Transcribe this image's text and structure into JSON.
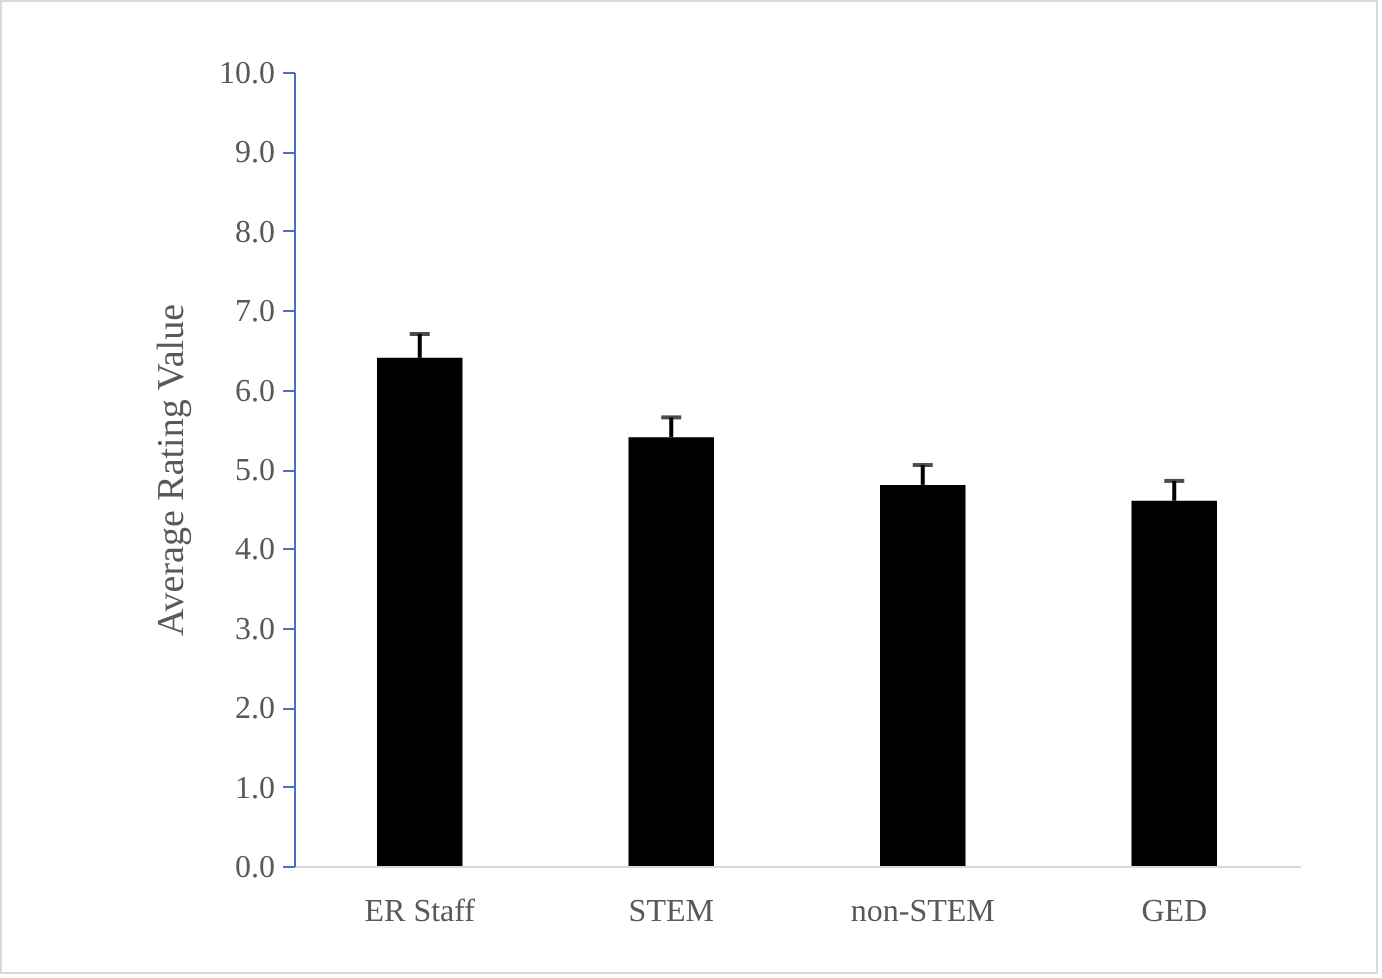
{
  "chart_data": {
    "type": "bar",
    "ylabel": "Average Rating Value",
    "categories": [
      "ER Staff",
      "STEM",
      "non-STEM",
      "GED"
    ],
    "values": [
      6.4,
      5.4,
      4.8,
      4.6
    ],
    "errors": [
      [
        6.4,
        6.7
      ],
      [
        5.4,
        5.65
      ],
      [
        4.8,
        5.05
      ],
      [
        4.6,
        4.85
      ]
    ],
    "color": "#000000",
    "ylim": [
      0,
      10
    ],
    "yticks": [
      {
        "value": 0,
        "label": "0.0"
      },
      {
        "value": 1,
        "label": "1.0"
      },
      {
        "value": 2,
        "label": "2.0"
      },
      {
        "value": 3,
        "label": "3.0"
      },
      {
        "value": 4,
        "label": "4.0"
      },
      {
        "value": 5,
        "label": "5.0"
      },
      {
        "value": 6,
        "label": "6.0"
      },
      {
        "value": 7,
        "label": "7.0"
      },
      {
        "value": 8,
        "label": "8.0"
      },
      {
        "value": 9,
        "label": "9.0"
      },
      {
        "value": 10,
        "label": "10.0"
      }
    ],
    "grid": false
  }
}
